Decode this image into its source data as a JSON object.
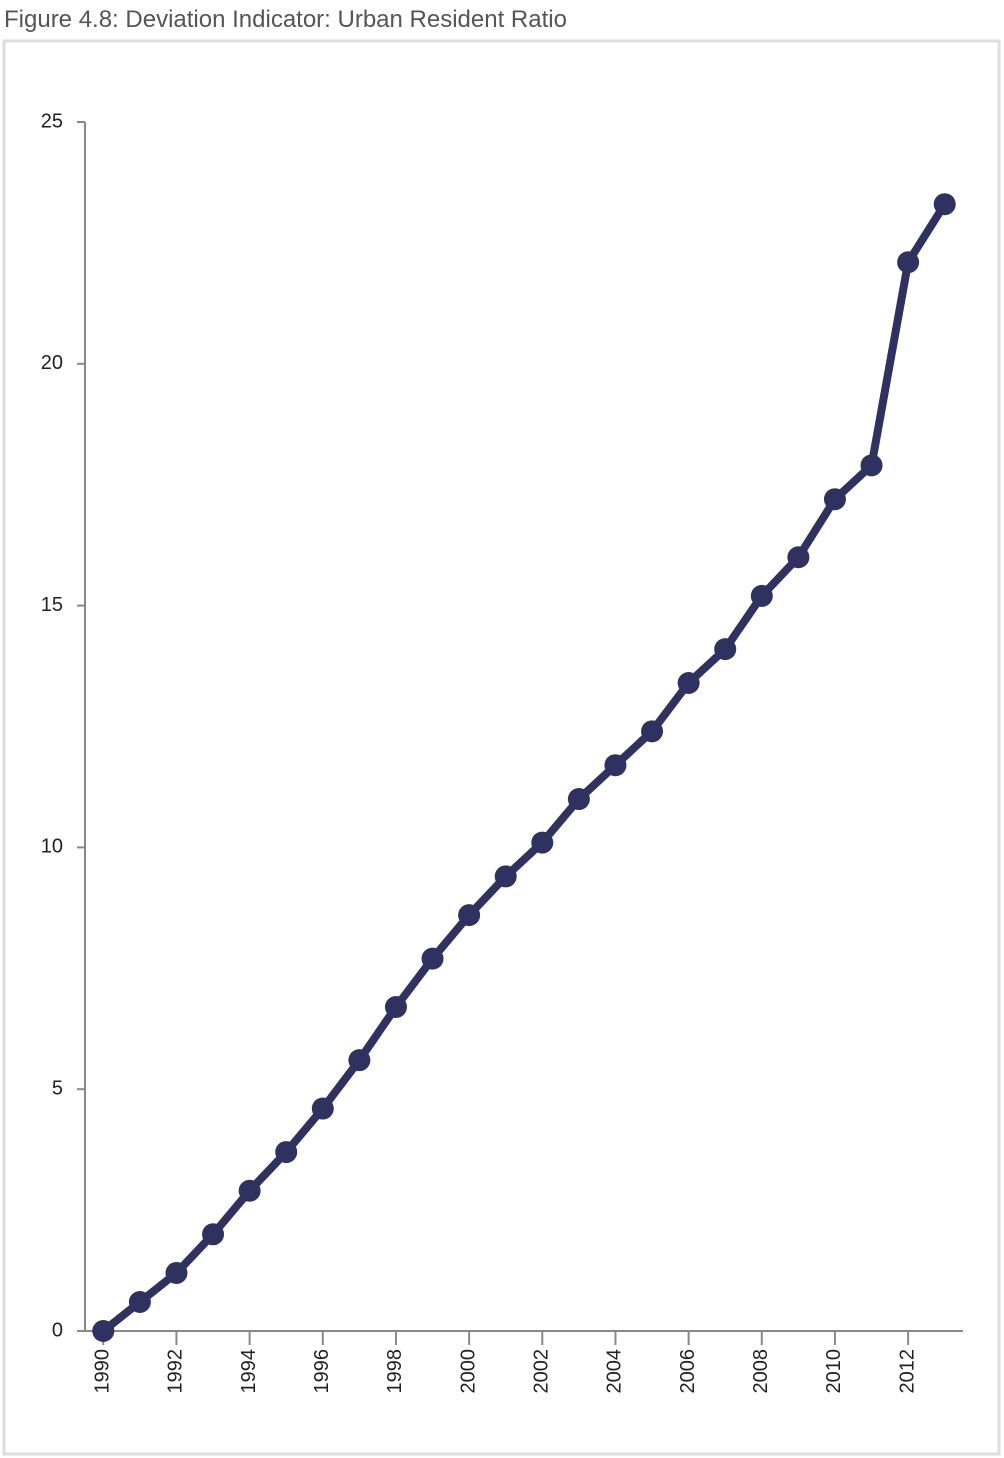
{
  "chart_data": {
    "type": "line",
    "title": "Figure 4.8: Deviation Indicator: Urban Resident Ratio",
    "x": [
      1990,
      1991,
      1992,
      1993,
      1994,
      1995,
      1996,
      1997,
      1998,
      1999,
      2000,
      2001,
      2002,
      2003,
      2004,
      2005,
      2006,
      2007,
      2008,
      2009,
      2010,
      2011,
      2012,
      2013
    ],
    "values": [
      0,
      0.6,
      1.2,
      2.0,
      2.9,
      3.7,
      4.6,
      5.6,
      6.7,
      7.7,
      8.6,
      9.4,
      10.1,
      11.0,
      11.7,
      12.4,
      13.4,
      14.1,
      15.2,
      16.0,
      17.2,
      17.9,
      22.1,
      23.3
    ],
    "color": "#2f3161",
    "xlim": [
      1989.5,
      2013.5
    ],
    "xticks": [
      1990,
      1992,
      1994,
      1996,
      1998,
      2000,
      2002,
      2004,
      2006,
      2008,
      2010,
      2012
    ],
    "ylim": [
      0,
      25
    ],
    "yticks": [
      0,
      5,
      10,
      15,
      20,
      25
    ]
  }
}
